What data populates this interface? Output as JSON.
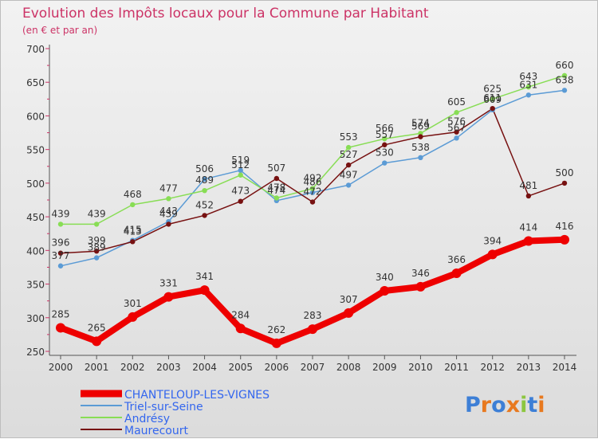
{
  "chart_data": {
    "type": "line",
    "title": "Evolution des Impôts locaux pour la Commune par Habitant",
    "subtitle": "(en € et par an)",
    "xlabel": "",
    "ylabel": "",
    "ylim": [
      250,
      700
    ],
    "yticks": [
      250,
      300,
      350,
      400,
      450,
      500,
      550,
      600,
      650,
      700
    ],
    "x": [
      2000,
      2001,
      2002,
      2003,
      2004,
      2005,
      2006,
      2007,
      2008,
      2009,
      2010,
      2011,
      2012,
      2013,
      2014
    ],
    "series": [
      {
        "name": "CHANTELOUP-LES-VIGNES",
        "color": "#ee0000",
        "emphasis": true,
        "values": [
          285,
          265,
          301,
          331,
          341,
          284,
          262,
          283,
          307,
          340,
          346,
          366,
          394,
          414,
          416
        ]
      },
      {
        "name": "Triel-sur-Seine",
        "color": "#5b9bd5",
        "values": [
          377,
          389,
          415,
          443,
          506,
          519,
          474,
          486,
          497,
          530,
          538,
          567,
          609,
          631,
          638
        ]
      },
      {
        "name": "Andrésy",
        "color": "#88dd55",
        "values": [
          439,
          439,
          468,
          477,
          489,
          512,
          478,
          492,
          553,
          566,
          574,
          605,
          625,
          643,
          660
        ]
      },
      {
        "name": "Maurecourt",
        "color": "#771111",
        "values": [
          396,
          399,
          413,
          439,
          452,
          473,
          507,
          472,
          527,
          557,
          569,
          576,
          611,
          481,
          500
        ]
      }
    ],
    "legend_position": "bottom-left",
    "grid": false
  },
  "brand": {
    "logo_text": "Proxiti"
  }
}
